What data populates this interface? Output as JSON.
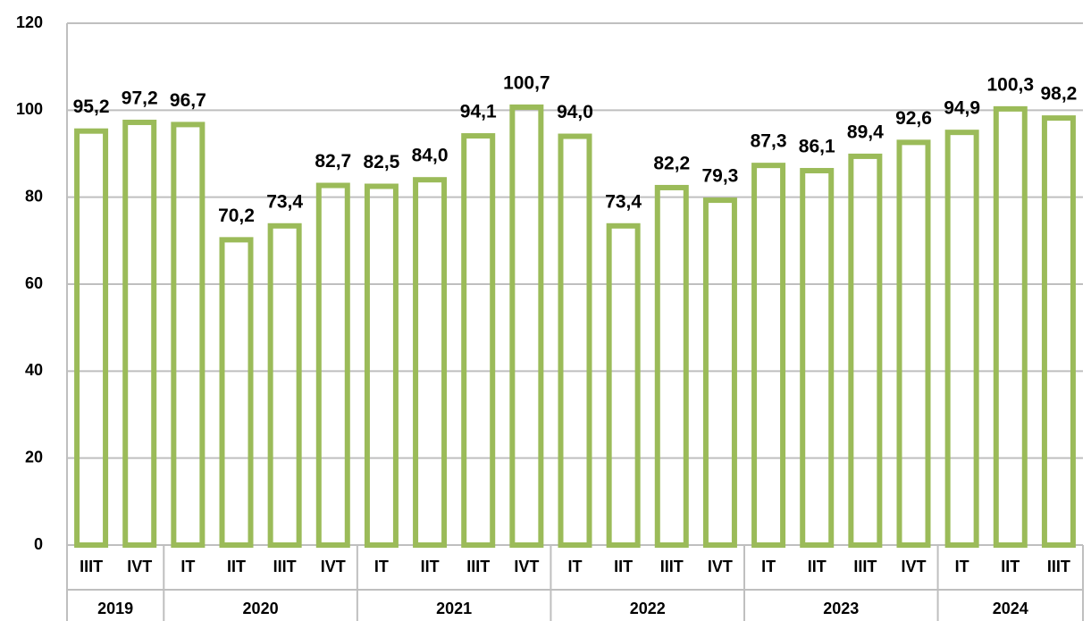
{
  "chart_data": {
    "type": "bar",
    "categories": [
      "IIIT",
      "IVT",
      "IT",
      "IIT",
      "IIIT",
      "IVT",
      "IT",
      "IIT",
      "IIIT",
      "IVT",
      "IT",
      "IIT",
      "IIIT",
      "IVT",
      "IT",
      "IIT",
      "IIIT",
      "IVT",
      "IT",
      "IIT",
      "IIIT"
    ],
    "groups": [
      {
        "label": "2019",
        "count": 2
      },
      {
        "label": "2020",
        "count": 4
      },
      {
        "label": "2021",
        "count": 4
      },
      {
        "label": "2022",
        "count": 4
      },
      {
        "label": "2023",
        "count": 4
      },
      {
        "label": "2024",
        "count": 3
      }
    ],
    "values": [
      95.2,
      97.2,
      96.7,
      70.2,
      73.4,
      82.7,
      82.5,
      84.0,
      94.1,
      100.7,
      94.0,
      73.4,
      82.2,
      79.3,
      87.3,
      86.1,
      89.4,
      92.6,
      94.9,
      100.3,
      98.2
    ],
    "value_labels": [
      "95,2",
      "97,2",
      "96,7",
      "70,2",
      "73,4",
      "82,7",
      "82,5",
      "84,0",
      "94,1",
      "100,7",
      "94,0",
      "73,4",
      "82,2",
      "79,3",
      "87,3",
      "86,1",
      "89,4",
      "92,6",
      "94,9",
      "100,3",
      "98,2"
    ],
    "color": "#9bbb59",
    "ylim": [
      0,
      120
    ],
    "yticks": [
      0,
      20,
      40,
      60,
      80,
      100,
      120
    ],
    "grid": true
  }
}
